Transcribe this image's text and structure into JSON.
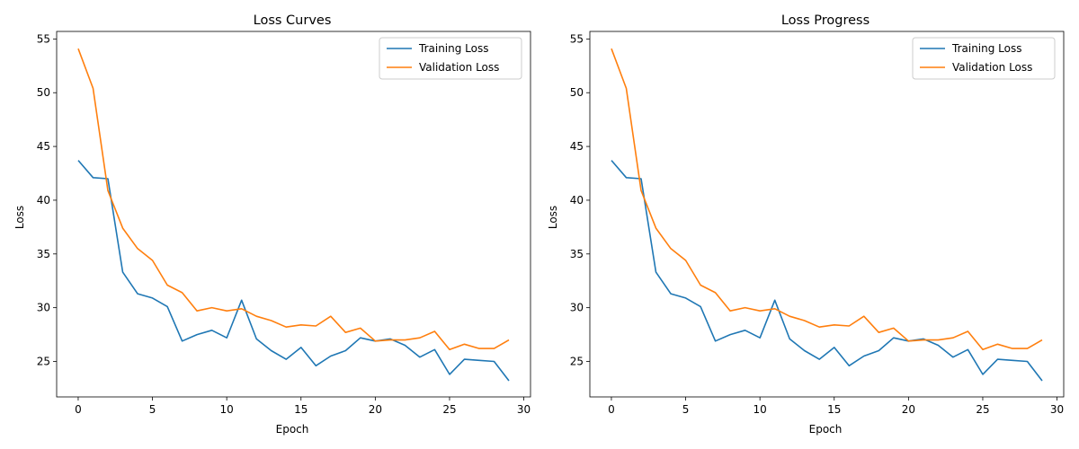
{
  "colors": {
    "training": "#1f77b4",
    "validation": "#ff7f0e"
  },
  "chart_data": [
    {
      "type": "line",
      "title": "Loss Curves",
      "xlabel": "Epoch",
      "ylabel": "Loss",
      "xlim": [
        -1.45,
        30.45
      ],
      "ylim": [
        21.7,
        55.7
      ],
      "xticks": [
        0,
        5,
        10,
        15,
        20,
        25,
        30
      ],
      "yticks": [
        25,
        30,
        35,
        40,
        45,
        50,
        55
      ],
      "grid": false,
      "legend_position": "top-right",
      "x": [
        0,
        1,
        2,
        3,
        4,
        5,
        6,
        7,
        8,
        9,
        10,
        11,
        12,
        13,
        14,
        15,
        16,
        17,
        18,
        19,
        20,
        21,
        22,
        23,
        24,
        25,
        26,
        27,
        28,
        29
      ],
      "series": [
        {
          "name": "Training Loss",
          "values": [
            43.7,
            42.1,
            42.0,
            33.3,
            31.3,
            30.9,
            30.1,
            26.9,
            27.5,
            27.9,
            27.2,
            30.7,
            27.1,
            26.0,
            25.2,
            26.3,
            24.6,
            25.5,
            26.0,
            27.2,
            26.9,
            27.1,
            26.5,
            25.4,
            26.1,
            23.8,
            25.2,
            25.1,
            25.0,
            23.2
          ]
        },
        {
          "name": "Validation Loss",
          "values": [
            54.1,
            50.4,
            40.9,
            37.4,
            35.5,
            34.4,
            32.1,
            31.4,
            29.7,
            30.0,
            29.7,
            29.9,
            29.2,
            28.8,
            28.2,
            28.4,
            28.3,
            29.2,
            27.7,
            28.1,
            26.9,
            27.0,
            27.0,
            27.2,
            27.8,
            26.1,
            26.6,
            26.2,
            26.2,
            27.0
          ]
        }
      ]
    },
    {
      "type": "line",
      "title": "Loss Progress",
      "xlabel": "Epoch",
      "ylabel": "Loss",
      "xlim": [
        -1.45,
        30.45
      ],
      "ylim": [
        21.7,
        55.7
      ],
      "xticks": [
        0,
        5,
        10,
        15,
        20,
        25,
        30
      ],
      "yticks": [
        25,
        30,
        35,
        40,
        45,
        50,
        55
      ],
      "grid": false,
      "legend_position": "top-right",
      "x": [
        0,
        1,
        2,
        3,
        4,
        5,
        6,
        7,
        8,
        9,
        10,
        11,
        12,
        13,
        14,
        15,
        16,
        17,
        18,
        19,
        20,
        21,
        22,
        23,
        24,
        25,
        26,
        27,
        28,
        29
      ],
      "series": [
        {
          "name": "Training Loss",
          "values": [
            43.7,
            42.1,
            42.0,
            33.3,
            31.3,
            30.9,
            30.1,
            26.9,
            27.5,
            27.9,
            27.2,
            30.7,
            27.1,
            26.0,
            25.2,
            26.3,
            24.6,
            25.5,
            26.0,
            27.2,
            26.9,
            27.1,
            26.5,
            25.4,
            26.1,
            23.8,
            25.2,
            25.1,
            25.0,
            23.2
          ]
        },
        {
          "name": "Validation Loss",
          "values": [
            54.1,
            50.4,
            40.9,
            37.4,
            35.5,
            34.4,
            32.1,
            31.4,
            29.7,
            30.0,
            29.7,
            29.9,
            29.2,
            28.8,
            28.2,
            28.4,
            28.3,
            29.2,
            27.7,
            28.1,
            26.9,
            27.0,
            27.0,
            27.2,
            27.8,
            26.1,
            26.6,
            26.2,
            26.2,
            27.0
          ]
        }
      ]
    }
  ]
}
